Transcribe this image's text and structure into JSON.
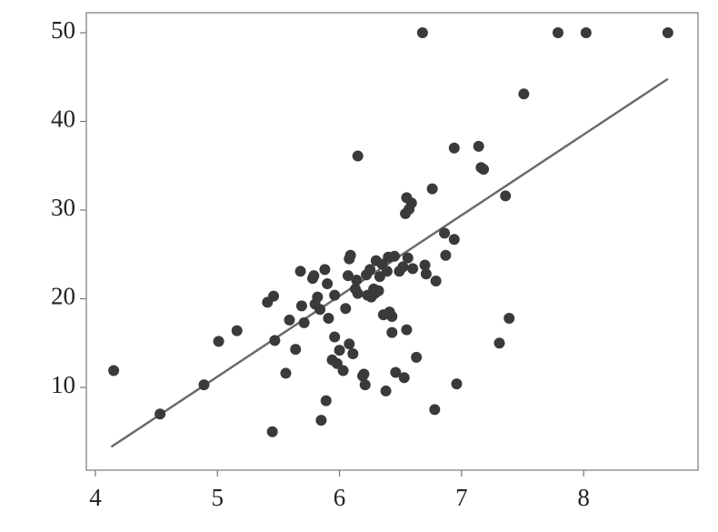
{
  "chart_data": {
    "type": "scatter",
    "x": [
      4.15,
      4.53,
      4.89,
      5.01,
      5.16,
      5.41,
      5.46,
      5.45,
      5.47,
      5.56,
      5.59,
      5.64,
      5.68,
      5.69,
      5.71,
      5.78,
      5.79,
      5.8,
      5.82,
      5.84,
      5.85,
      5.88,
      5.89,
      5.9,
      5.91,
      5.94,
      5.96,
      5.96,
      5.98,
      6.0,
      6.03,
      6.05,
      6.07,
      6.08,
      6.09,
      6.08,
      6.11,
      6.13,
      6.14,
      6.15,
      6.15,
      6.19,
      6.2,
      6.21,
      6.22,
      6.23,
      6.25,
      6.26,
      6.28,
      6.29,
      6.3,
      6.32,
      6.33,
      6.35,
      6.36,
      6.38,
      6.39,
      6.4,
      6.41,
      6.43,
      6.43,
      6.45,
      6.46,
      6.49,
      6.52,
      6.53,
      6.54,
      6.55,
      6.55,
      6.56,
      6.57,
      6.59,
      6.6,
      6.63,
      6.68,
      6.7,
      6.71,
      6.76,
      6.78,
      6.79,
      6.86,
      6.87,
      6.94,
      6.94,
      6.96,
      7.14,
      7.16,
      7.18,
      7.31,
      7.36,
      7.39,
      7.51,
      7.79,
      8.02,
      8.69
    ],
    "y": [
      11.9,
      7.0,
      10.3,
      15.2,
      16.4,
      19.6,
      20.3,
      5.0,
      15.3,
      11.6,
      17.6,
      14.3,
      23.1,
      19.2,
      17.3,
      22.3,
      22.6,
      19.4,
      20.2,
      18.8,
      6.3,
      23.3,
      8.5,
      21.7,
      17.8,
      13.1,
      15.7,
      20.4,
      12.7,
      14.2,
      11.9,
      18.9,
      22.6,
      24.5,
      24.9,
      14.9,
      13.8,
      21.1,
      22.1,
      36.1,
      20.6,
      11.3,
      11.5,
      10.3,
      22.7,
      20.4,
      23.3,
      20.2,
      21.1,
      20.6,
      24.3,
      20.9,
      22.5,
      23.9,
      18.2,
      9.6,
      23.1,
      24.7,
      18.5,
      18.0,
      16.2,
      24.8,
      11.7,
      23.1,
      23.6,
      11.1,
      29.6,
      16.5,
      31.4,
      24.6,
      30.1,
      30.8,
      23.4,
      13.4,
      50,
      23.8,
      22.8,
      32.4,
      7.5,
      22.0,
      27.4,
      24.9,
      37.0,
      26.7,
      10.4,
      37.2,
      34.8,
      34.6,
      15.0,
      31.6,
      17.8,
      43.1,
      50,
      50,
      50
    ],
    "color": "#3a3a3a",
    "fit_line": {
      "x": [
        4.13,
        8.69
      ],
      "y": [
        3.3,
        44.8
      ],
      "color": "#6b6b6b"
    },
    "xlim": [
      3.926,
      8.937
    ],
    "xticks": [
      4,
      5,
      6,
      7,
      8
    ],
    "ylim": [
      0.67,
      52.26
    ],
    "yticks": [
      10,
      20,
      30,
      40,
      50
    ],
    "grid": false
  }
}
